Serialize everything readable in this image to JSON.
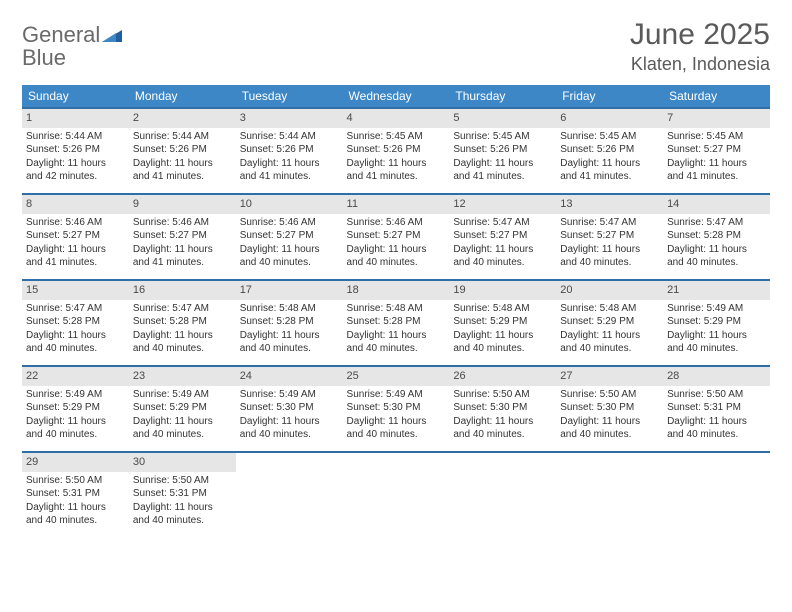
{
  "logo": {
    "word1": "General",
    "word2": "Blue"
  },
  "title": "June 2025",
  "location": "Klaten, Indonesia",
  "colors": {
    "header_bg": "#3d87c7",
    "header_text": "#ffffff",
    "row_border": "#2f6fa8",
    "daynum_bg": "#e6e6e6",
    "text": "#333333",
    "title_text": "#5a5a5a",
    "logo_gray": "#6a6a6a",
    "logo_blue": "#2f7bbf"
  },
  "typography": {
    "title_fontsize": 30,
    "location_fontsize": 18,
    "dayhead_fontsize": 12,
    "cell_fontsize": 10
  },
  "day_names": [
    "Sunday",
    "Monday",
    "Tuesday",
    "Wednesday",
    "Thursday",
    "Friday",
    "Saturday"
  ],
  "weeks": [
    [
      {
        "n": "1",
        "sr": "Sunrise: 5:44 AM",
        "ss": "Sunset: 5:26 PM",
        "d1": "Daylight: 11 hours",
        "d2": "and 42 minutes."
      },
      {
        "n": "2",
        "sr": "Sunrise: 5:44 AM",
        "ss": "Sunset: 5:26 PM",
        "d1": "Daylight: 11 hours",
        "d2": "and 41 minutes."
      },
      {
        "n": "3",
        "sr": "Sunrise: 5:44 AM",
        "ss": "Sunset: 5:26 PM",
        "d1": "Daylight: 11 hours",
        "d2": "and 41 minutes."
      },
      {
        "n": "4",
        "sr": "Sunrise: 5:45 AM",
        "ss": "Sunset: 5:26 PM",
        "d1": "Daylight: 11 hours",
        "d2": "and 41 minutes."
      },
      {
        "n": "5",
        "sr": "Sunrise: 5:45 AM",
        "ss": "Sunset: 5:26 PM",
        "d1": "Daylight: 11 hours",
        "d2": "and 41 minutes."
      },
      {
        "n": "6",
        "sr": "Sunrise: 5:45 AM",
        "ss": "Sunset: 5:26 PM",
        "d1": "Daylight: 11 hours",
        "d2": "and 41 minutes."
      },
      {
        "n": "7",
        "sr": "Sunrise: 5:45 AM",
        "ss": "Sunset: 5:27 PM",
        "d1": "Daylight: 11 hours",
        "d2": "and 41 minutes."
      }
    ],
    [
      {
        "n": "8",
        "sr": "Sunrise: 5:46 AM",
        "ss": "Sunset: 5:27 PM",
        "d1": "Daylight: 11 hours",
        "d2": "and 41 minutes."
      },
      {
        "n": "9",
        "sr": "Sunrise: 5:46 AM",
        "ss": "Sunset: 5:27 PM",
        "d1": "Daylight: 11 hours",
        "d2": "and 41 minutes."
      },
      {
        "n": "10",
        "sr": "Sunrise: 5:46 AM",
        "ss": "Sunset: 5:27 PM",
        "d1": "Daylight: 11 hours",
        "d2": "and 40 minutes."
      },
      {
        "n": "11",
        "sr": "Sunrise: 5:46 AM",
        "ss": "Sunset: 5:27 PM",
        "d1": "Daylight: 11 hours",
        "d2": "and 40 minutes."
      },
      {
        "n": "12",
        "sr": "Sunrise: 5:47 AM",
        "ss": "Sunset: 5:27 PM",
        "d1": "Daylight: 11 hours",
        "d2": "and 40 minutes."
      },
      {
        "n": "13",
        "sr": "Sunrise: 5:47 AM",
        "ss": "Sunset: 5:27 PM",
        "d1": "Daylight: 11 hours",
        "d2": "and 40 minutes."
      },
      {
        "n": "14",
        "sr": "Sunrise: 5:47 AM",
        "ss": "Sunset: 5:28 PM",
        "d1": "Daylight: 11 hours",
        "d2": "and 40 minutes."
      }
    ],
    [
      {
        "n": "15",
        "sr": "Sunrise: 5:47 AM",
        "ss": "Sunset: 5:28 PM",
        "d1": "Daylight: 11 hours",
        "d2": "and 40 minutes."
      },
      {
        "n": "16",
        "sr": "Sunrise: 5:47 AM",
        "ss": "Sunset: 5:28 PM",
        "d1": "Daylight: 11 hours",
        "d2": "and 40 minutes."
      },
      {
        "n": "17",
        "sr": "Sunrise: 5:48 AM",
        "ss": "Sunset: 5:28 PM",
        "d1": "Daylight: 11 hours",
        "d2": "and 40 minutes."
      },
      {
        "n": "18",
        "sr": "Sunrise: 5:48 AM",
        "ss": "Sunset: 5:28 PM",
        "d1": "Daylight: 11 hours",
        "d2": "and 40 minutes."
      },
      {
        "n": "19",
        "sr": "Sunrise: 5:48 AM",
        "ss": "Sunset: 5:29 PM",
        "d1": "Daylight: 11 hours",
        "d2": "and 40 minutes."
      },
      {
        "n": "20",
        "sr": "Sunrise: 5:48 AM",
        "ss": "Sunset: 5:29 PM",
        "d1": "Daylight: 11 hours",
        "d2": "and 40 minutes."
      },
      {
        "n": "21",
        "sr": "Sunrise: 5:49 AM",
        "ss": "Sunset: 5:29 PM",
        "d1": "Daylight: 11 hours",
        "d2": "and 40 minutes."
      }
    ],
    [
      {
        "n": "22",
        "sr": "Sunrise: 5:49 AM",
        "ss": "Sunset: 5:29 PM",
        "d1": "Daylight: 11 hours",
        "d2": "and 40 minutes."
      },
      {
        "n": "23",
        "sr": "Sunrise: 5:49 AM",
        "ss": "Sunset: 5:29 PM",
        "d1": "Daylight: 11 hours",
        "d2": "and 40 minutes."
      },
      {
        "n": "24",
        "sr": "Sunrise: 5:49 AM",
        "ss": "Sunset: 5:30 PM",
        "d1": "Daylight: 11 hours",
        "d2": "and 40 minutes."
      },
      {
        "n": "25",
        "sr": "Sunrise: 5:49 AM",
        "ss": "Sunset: 5:30 PM",
        "d1": "Daylight: 11 hours",
        "d2": "and 40 minutes."
      },
      {
        "n": "26",
        "sr": "Sunrise: 5:50 AM",
        "ss": "Sunset: 5:30 PM",
        "d1": "Daylight: 11 hours",
        "d2": "and 40 minutes."
      },
      {
        "n": "27",
        "sr": "Sunrise: 5:50 AM",
        "ss": "Sunset: 5:30 PM",
        "d1": "Daylight: 11 hours",
        "d2": "and 40 minutes."
      },
      {
        "n": "28",
        "sr": "Sunrise: 5:50 AM",
        "ss": "Sunset: 5:31 PM",
        "d1": "Daylight: 11 hours",
        "d2": "and 40 minutes."
      }
    ],
    [
      {
        "n": "29",
        "sr": "Sunrise: 5:50 AM",
        "ss": "Sunset: 5:31 PM",
        "d1": "Daylight: 11 hours",
        "d2": "and 40 minutes."
      },
      {
        "n": "30",
        "sr": "Sunrise: 5:50 AM",
        "ss": "Sunset: 5:31 PM",
        "d1": "Daylight: 11 hours",
        "d2": "and 40 minutes."
      },
      {
        "empty": true
      },
      {
        "empty": true
      },
      {
        "empty": true
      },
      {
        "empty": true
      },
      {
        "empty": true
      }
    ]
  ]
}
